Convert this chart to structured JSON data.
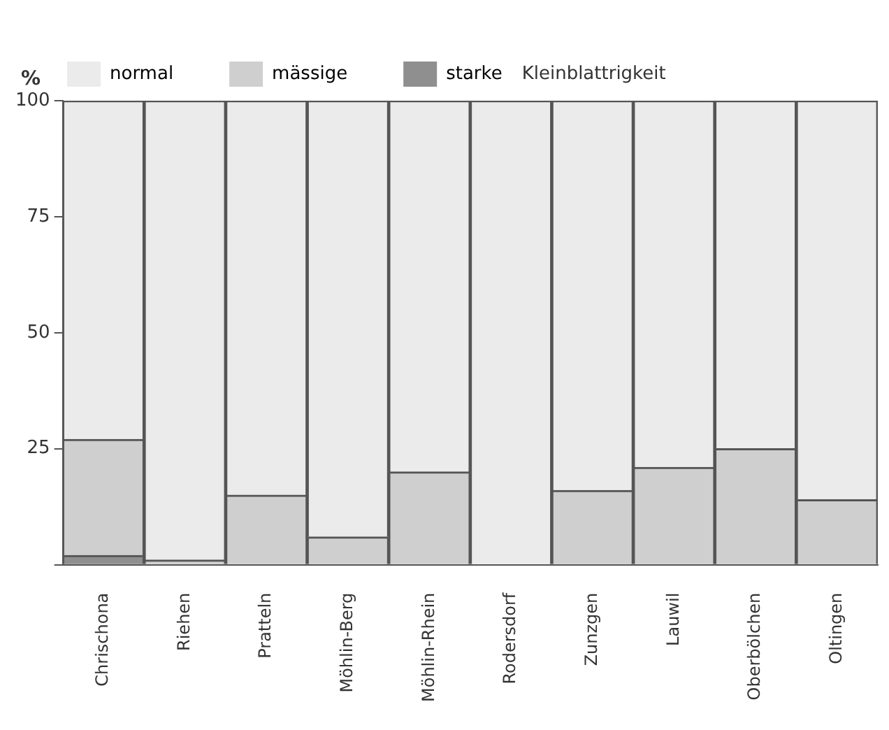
{
  "chart_data": {
    "type": "bar",
    "stacked": true,
    "title": "Kleinblattrigkeit",
    "ylabel": "%",
    "categories": [
      "Chrischona",
      "Riehen",
      "Pratteln",
      "Möhlin-Berg",
      "Möhlin-Rhein",
      "Rodersdorf",
      "Zunzgen",
      "Lauwil",
      "Oberbölchen",
      "Oltingen"
    ],
    "series": [
      {
        "name": "starke",
        "color": "#8f8f8f",
        "values": [
          2,
          0,
          0,
          0,
          0,
          0,
          0,
          0,
          0,
          0
        ]
      },
      {
        "name": "mässige",
        "color": "#cfcfcf",
        "values": [
          25,
          1,
          15,
          6,
          20,
          0,
          16,
          21,
          25,
          14
        ]
      },
      {
        "name": "normal",
        "color": "#ebebeb",
        "values": [
          73,
          99,
          85,
          94,
          80,
          100,
          84,
          79,
          75,
          86
        ]
      }
    ],
    "ylim": [
      0,
      100
    ],
    "yticks": [
      {
        "value": 0,
        "label": null
      },
      25,
      50,
      75,
      100
    ],
    "grid": false,
    "legend": "top"
  }
}
